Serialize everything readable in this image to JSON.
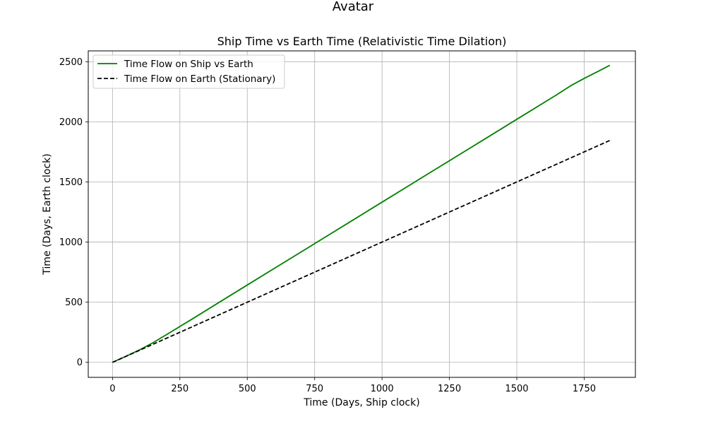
{
  "figure": {
    "suptitle": "Avatar"
  },
  "chart_data": {
    "type": "line",
    "title": "Ship Time vs Earth Time (Relativistic Time Dilation)",
    "xlabel": "Time (Days, Ship clock)",
    "ylabel": "Time (Days, Earth clock)",
    "xlim": [
      -90,
      1940
    ],
    "ylim": [
      -125,
      2590
    ],
    "xticks": [
      0,
      250,
      500,
      750,
      1000,
      1250,
      1500,
      1750
    ],
    "yticks": [
      0,
      500,
      1000,
      1500,
      2000,
      2500
    ],
    "grid": true,
    "legend_position": "upper-left",
    "series": [
      {
        "name": "Time Flow on Ship vs Earth",
        "color": "#008000",
        "style": "solid",
        "x": [
          0,
          50,
          100,
          150,
          200,
          250,
          300,
          400,
          500,
          600,
          700,
          800,
          900,
          1000,
          1100,
          1200,
          1300,
          1400,
          1500,
          1600,
          1650,
          1700,
          1750,
          1800,
          1845
        ],
        "y": [
          0,
          50,
          103,
          163,
          230,
          298,
          366,
          505,
          643,
          781,
          918,
          1056,
          1194,
          1332,
          1470,
          1608,
          1745,
          1883,
          2021,
          2159,
          2228,
          2300,
          2361,
          2418,
          2470
        ]
      },
      {
        "name": "Time Flow on Earth (Stationary)",
        "color": "#000000",
        "style": "dashed",
        "x": [
          0,
          1845
        ],
        "y": [
          0,
          1845
        ]
      }
    ]
  }
}
